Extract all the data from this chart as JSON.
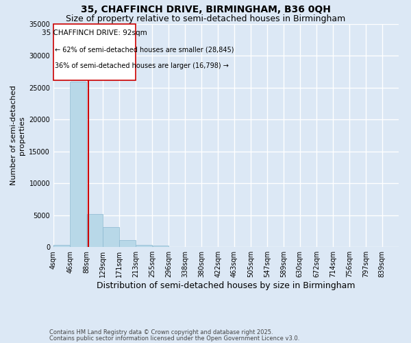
{
  "title": "35, CHAFFINCH DRIVE, BIRMINGHAM, B36 0QH",
  "subtitle": "Size of property relative to semi-detached houses in Birmingham",
  "xlabel": "Distribution of semi-detached houses by size in Birmingham",
  "ylabel": "Number of semi-detached\nproperties",
  "footnote1": "Contains HM Land Registry data © Crown copyright and database right 2025.",
  "footnote2": "Contains public sector information licensed under the Open Government Licence v3.0.",
  "annotation_line1": "35 CHAFFINCH DRIVE: 92sqm",
  "annotation_line2": "← 62% of semi-detached houses are smaller (28,845)",
  "annotation_line3": "36% of semi-detached houses are larger (16,798) →",
  "property_size": 92,
  "bins": [
    4,
    46,
    88,
    129,
    171,
    213,
    255,
    296,
    338,
    380,
    422,
    463,
    505,
    547,
    589,
    630,
    672,
    714,
    756,
    797,
    839
  ],
  "bin_labels": [
    "4sqm",
    "46sqm",
    "88sqm",
    "129sqm",
    "171sqm",
    "213sqm",
    "255sqm",
    "296sqm",
    "338sqm",
    "380sqm",
    "422sqm",
    "463sqm",
    "505sqm",
    "547sqm",
    "589sqm",
    "630sqm",
    "672sqm",
    "714sqm",
    "756sqm",
    "797sqm",
    "839sqm"
  ],
  "counts": [
    350,
    26000,
    5200,
    3100,
    1100,
    350,
    200,
    0,
    0,
    0,
    0,
    0,
    0,
    0,
    0,
    0,
    0,
    0,
    0,
    0
  ],
  "bar_color": "#b8d8e8",
  "vline_color": "#cc0000",
  "ylim": [
    0,
    35000
  ],
  "yticks": [
    0,
    5000,
    10000,
    15000,
    20000,
    25000,
    30000,
    35000
  ],
  "background_color": "#dce8f5",
  "grid_color": "#ffffff",
  "title_fontsize": 10,
  "subtitle_fontsize": 9,
  "xlabel_fontsize": 9,
  "ylabel_fontsize": 8,
  "tick_fontsize": 7,
  "annotation_fontsize": 7.5,
  "footnote_fontsize": 6
}
